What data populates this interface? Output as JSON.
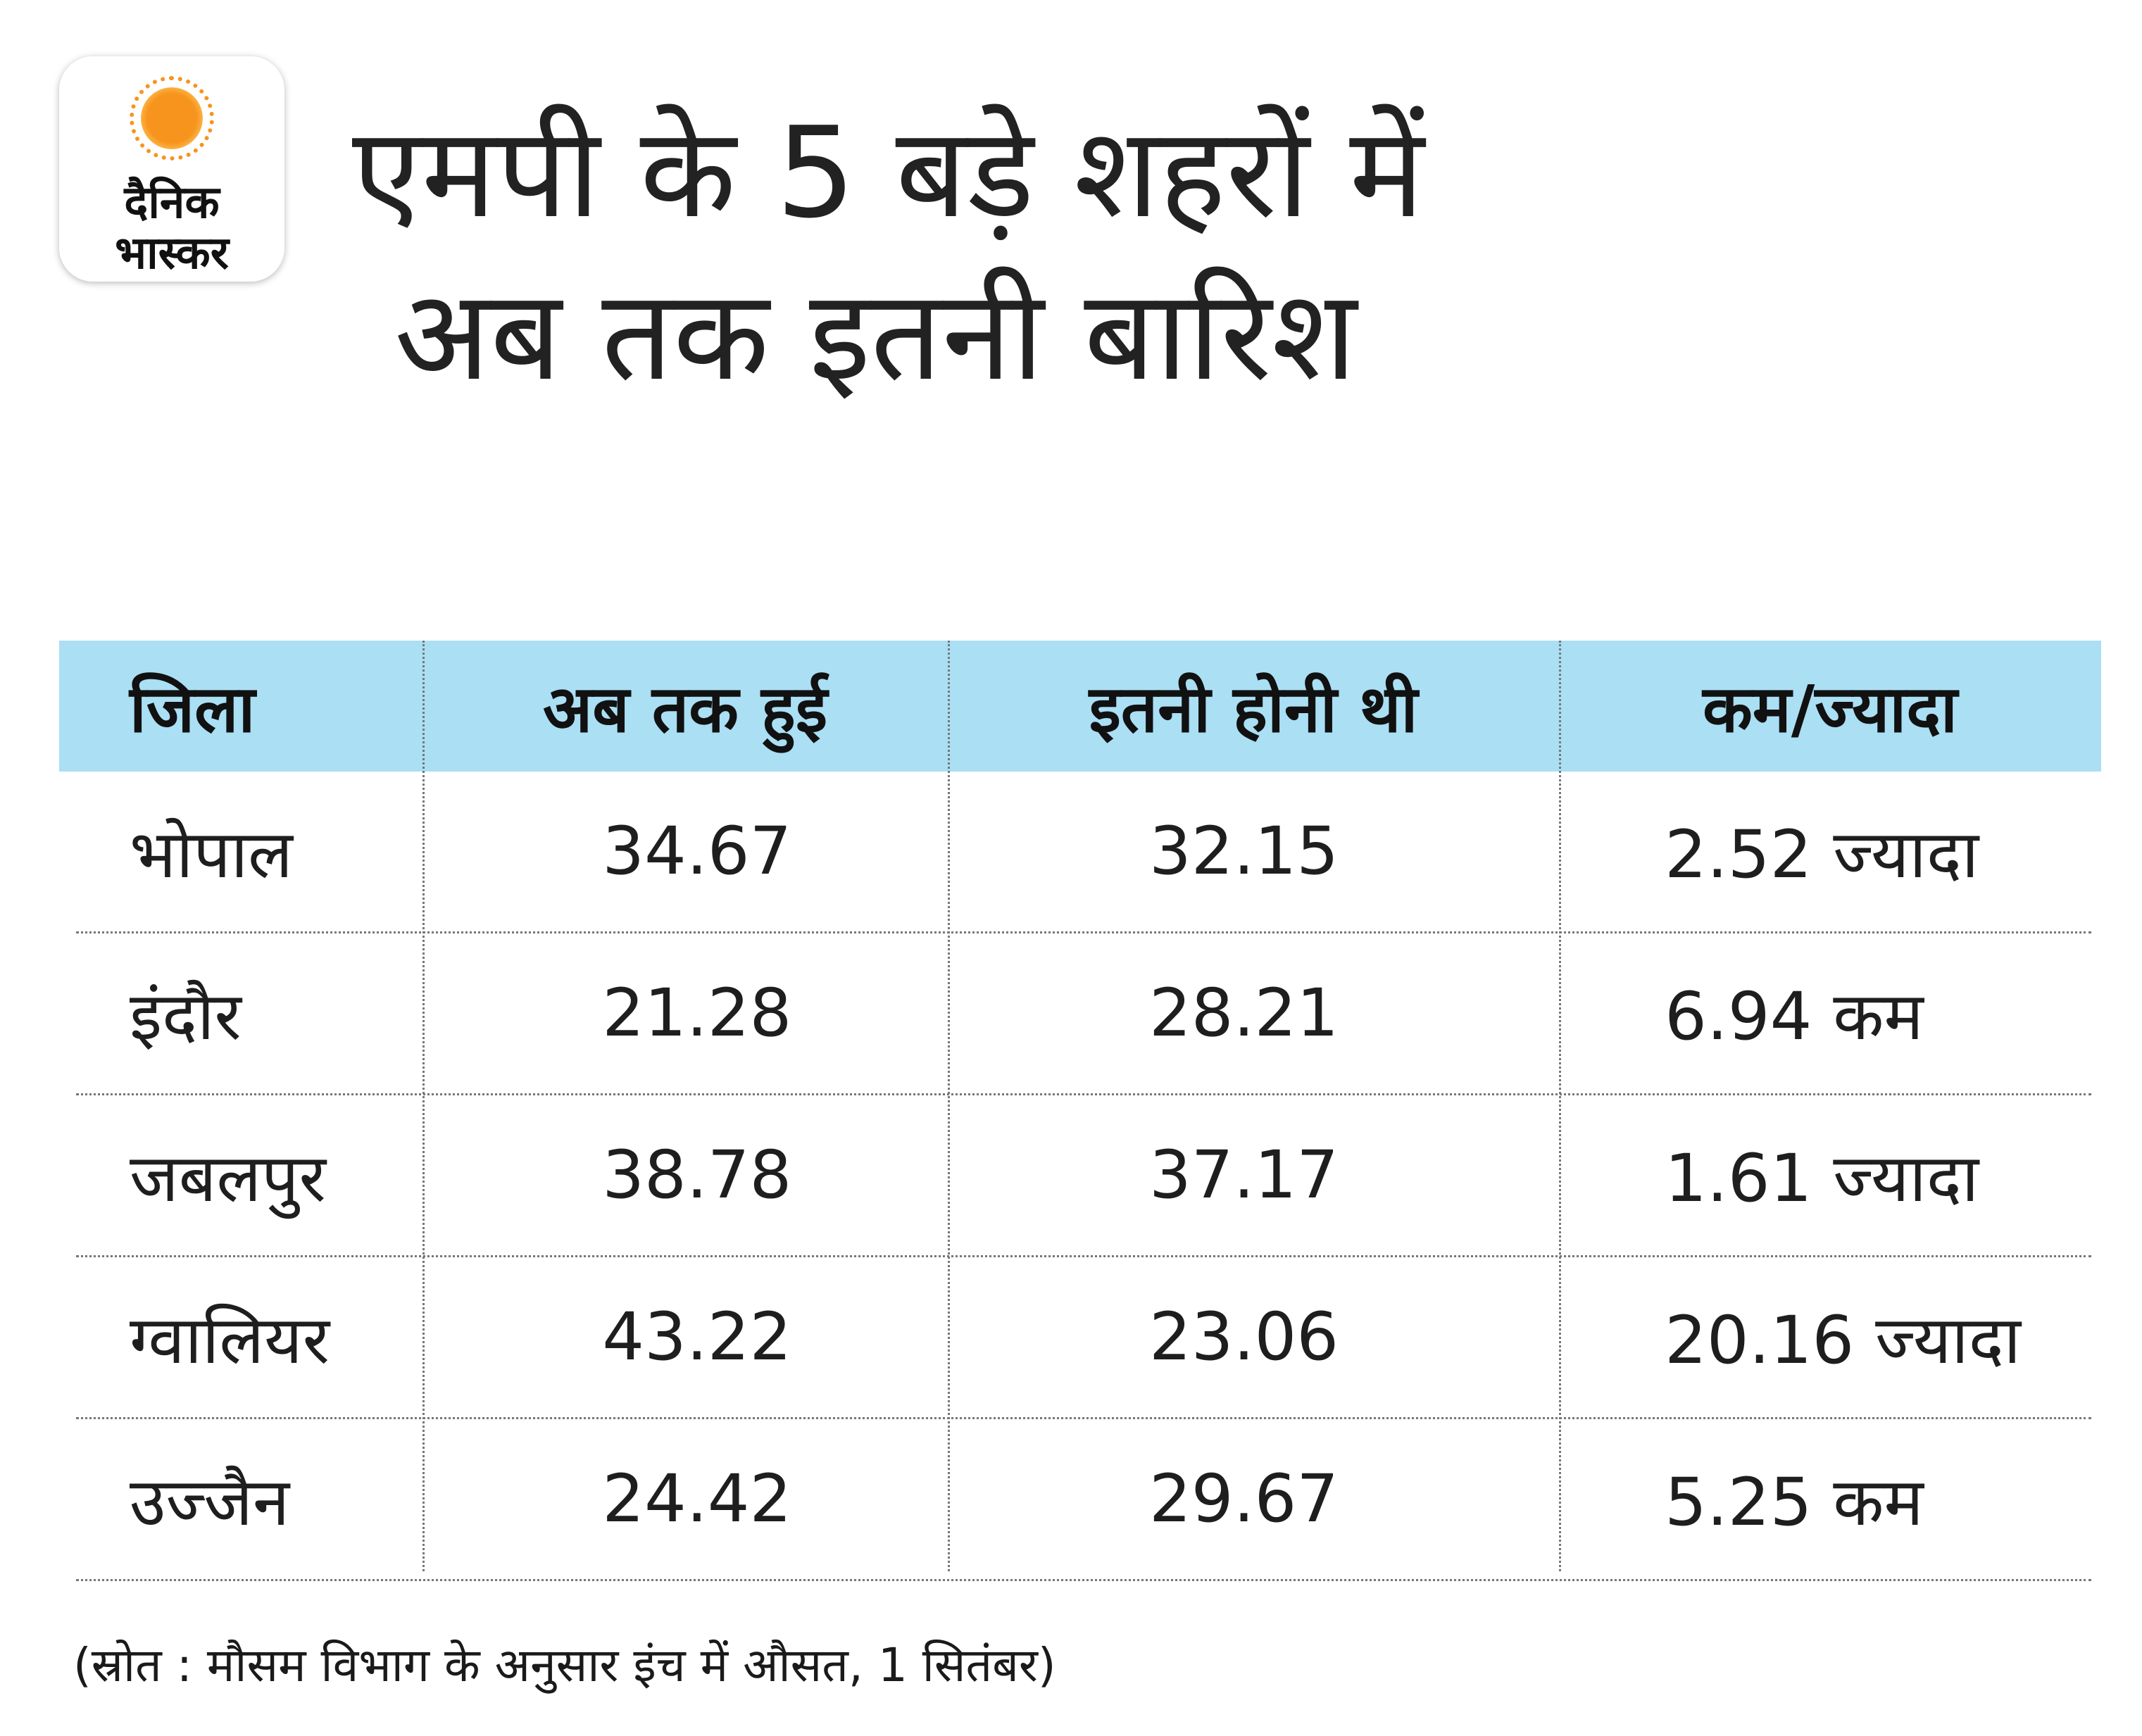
{
  "logo": {
    "line1": "दैनिक",
    "line2": "भास्कर",
    "accent": "#f7941d"
  },
  "title": {
    "line1": "एमपी के 5 बड़े शहरों में",
    "line2": "अब तक इतनी बारिश"
  },
  "chart_data": {
    "type": "table",
    "columns": [
      "जिला",
      "अब तक हुई",
      "इतनी होनी थी",
      "कम/ज्यादा"
    ],
    "rows": [
      {
        "district": "भोपाल",
        "actual": "34.67",
        "expected": "32.15",
        "diff": "2.52 ज्यादा"
      },
      {
        "district": "इंदौर",
        "actual": "21.28",
        "expected": "28.21",
        "diff": "6.94 कम"
      },
      {
        "district": "जबलपुर",
        "actual": "38.78",
        "expected": "37.17",
        "diff": "1.61 ज्यादा"
      },
      {
        "district": "ग्वालियर",
        "actual": "43.22",
        "expected": "23.06",
        "diff": "20.16 ज्यादा"
      },
      {
        "district": "उज्जैन",
        "actual": "24.42",
        "expected": "29.67",
        "diff": "5.25 कम"
      }
    ],
    "header_color": "#aadff4"
  },
  "source": "(स्रोत : मौसम विभाग के अनुसार इंच में औसत, 1 सितंबर)"
}
